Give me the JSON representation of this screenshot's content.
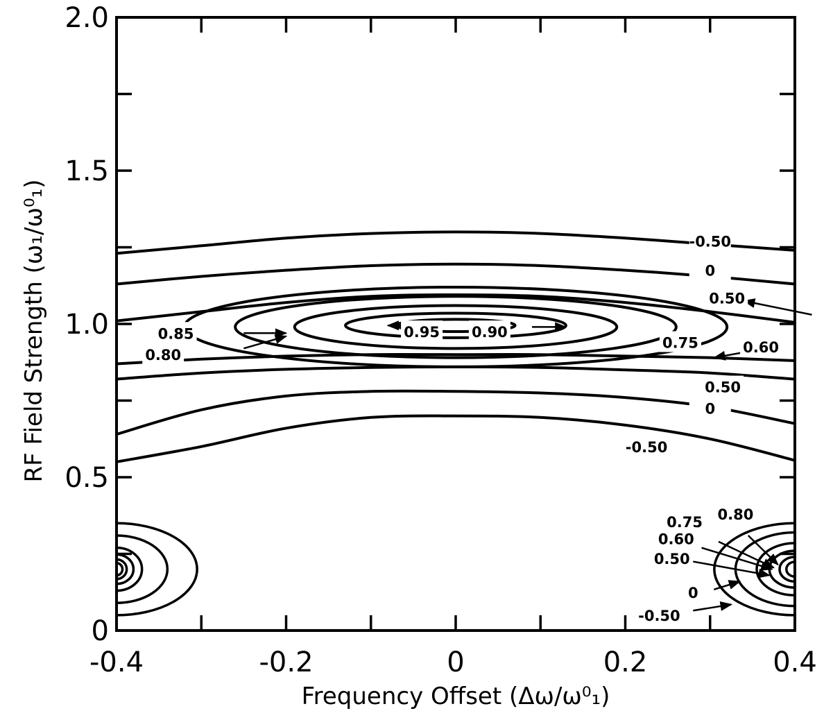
{
  "chart_data": {
    "type": "contour",
    "xlabel": "Frequency Offset (Δω/ω⁰₁)",
    "ylabel": "RF Field Strength (ω₁/ω⁰₁)",
    "xlim": [
      -0.4,
      0.4
    ],
    "ylim": [
      0,
      2.0
    ],
    "x_ticks": [
      -0.4,
      -0.3,
      -0.2,
      -0.1,
      0,
      0.1,
      0.2,
      0.3,
      0.4
    ],
    "x_tick_labels": [
      {
        "value": -0.4,
        "label": "-0.4"
      },
      {
        "value": -0.2,
        "label": "-0.2"
      },
      {
        "value": 0,
        "label": "0"
      },
      {
        "value": 0.2,
        "label": "0.2"
      },
      {
        "value": 0.4,
        "label": "0.4"
      }
    ],
    "y_ticks": [
      0,
      0.25,
      0.5,
      0.75,
      1.0,
      1.25,
      1.5,
      1.75,
      2.0
    ],
    "y_tick_labels": [
      {
        "value": 0,
        "label": "0"
      },
      {
        "value": 0.5,
        "label": "0.5"
      },
      {
        "value": 1.0,
        "label": "1.0"
      },
      {
        "value": 1.5,
        "label": "1.5"
      },
      {
        "value": 2.0,
        "label": "2.0"
      }
    ],
    "grid": false,
    "contour_lines": [
      {
        "level": "-0.50",
        "points": [
          [
            -0.4,
            1.23
          ],
          [
            -0.3,
            1.255
          ],
          [
            -0.2,
            1.28
          ],
          [
            -0.1,
            1.295
          ],
          [
            0,
            1.3
          ],
          [
            0.1,
            1.295
          ],
          [
            0.2,
            1.28
          ],
          [
            0.3,
            1.26
          ],
          [
            0.4,
            1.24
          ]
        ]
      },
      {
        "level": "0",
        "points": [
          [
            -0.4,
            1.13
          ],
          [
            -0.3,
            1.155
          ],
          [
            -0.2,
            1.175
          ],
          [
            -0.1,
            1.19
          ],
          [
            0,
            1.195
          ],
          [
            0.1,
            1.19
          ],
          [
            0.2,
            1.175
          ],
          [
            0.3,
            1.155
          ],
          [
            0.4,
            1.13
          ]
        ]
      },
      {
        "level": "0.50",
        "points": [
          [
            -0.4,
            1.01
          ],
          [
            -0.3,
            1.04
          ],
          [
            -0.2,
            1.07
          ],
          [
            -0.1,
            1.09
          ],
          [
            0,
            1.095
          ],
          [
            0.1,
            1.09
          ],
          [
            0.2,
            1.07
          ],
          [
            0.3,
            1.04
          ],
          [
            0.4,
            1.005
          ]
        ]
      },
      {
        "level": "0.60",
        "points": [
          [
            -0.4,
            0.87
          ],
          [
            -0.3,
            0.885
          ],
          [
            -0.2,
            0.895
          ],
          [
            -0.1,
            0.9
          ],
          [
            0,
            0.9
          ],
          [
            0.1,
            0.9
          ],
          [
            0.2,
            0.895
          ],
          [
            0.3,
            0.89
          ],
          [
            0.4,
            0.88
          ]
        ]
      },
      {
        "level": "0.50",
        "points": [
          [
            -0.4,
            0.82
          ],
          [
            -0.3,
            0.84
          ],
          [
            -0.2,
            0.852
          ],
          [
            -0.1,
            0.858
          ],
          [
            0,
            0.86
          ],
          [
            0.1,
            0.858
          ],
          [
            0.2,
            0.85
          ],
          [
            0.3,
            0.84
          ],
          [
            0.4,
            0.82
          ]
        ]
      },
      {
        "level": "0",
        "points": [
          [
            -0.4,
            0.64
          ],
          [
            -0.3,
            0.72
          ],
          [
            -0.2,
            0.765
          ],
          [
            -0.1,
            0.78
          ],
          [
            0,
            0.78
          ],
          [
            0.1,
            0.775
          ],
          [
            0.2,
            0.76
          ],
          [
            0.3,
            0.73
          ],
          [
            0.4,
            0.675
          ]
        ]
      },
      {
        "level": "-0.50",
        "points": [
          [
            -0.4,
            0.55
          ],
          [
            -0.3,
            0.6
          ],
          [
            -0.2,
            0.66
          ],
          [
            -0.1,
            0.695
          ],
          [
            0,
            0.7
          ],
          [
            0.1,
            0.695
          ],
          [
            0.2,
            0.67
          ],
          [
            0.3,
            0.625
          ],
          [
            0.4,
            0.555
          ]
        ]
      }
    ],
    "contour_ellipses": [
      {
        "level": "0.75",
        "cx": 0,
        "cy": 0.99,
        "rx": 0.32,
        "ry": 0.13
      },
      {
        "level": "0.80",
        "cx": 0,
        "cy": 0.99,
        "rx": 0.26,
        "ry": 0.1
      },
      {
        "level": "0.85",
        "cx": 0,
        "cy": 0.99,
        "rx": 0.19,
        "ry": 0.07
      },
      {
        "level": "0.90",
        "cx": 0,
        "cy": 0.995,
        "rx": 0.13,
        "ry": 0.04
      },
      {
        "level": "0.95",
        "cx": 0,
        "cy": 0.995,
        "rx": 0.07,
        "ry": 0.02
      }
    ],
    "corner_contours": [
      {
        "side": "left",
        "cx": -0.4,
        "cy": 0.2,
        "rx": [
          0.095,
          0.06,
          0.03,
          0.02,
          0.012,
          0.007
        ],
        "ry": [
          0.15,
          0.11,
          0.07,
          0.048,
          0.032,
          0.02
        ]
      },
      {
        "side": "right",
        "cx": 0.4,
        "cy": 0.2,
        "rx": [
          0.095,
          0.07,
          0.045,
          0.03,
          0.018,
          0.01
        ],
        "ry": [
          0.15,
          0.12,
          0.085,
          0.06,
          0.04,
          0.024
        ]
      }
    ],
    "annotations": [
      {
        "text": "-0.50",
        "x": 0.3,
        "y": 1.27
      },
      {
        "text": "0",
        "x": 0.3,
        "y": 1.175
      },
      {
        "text": "0.50",
        "x": 0.32,
        "y": 1.085
      },
      {
        "text": "0.75",
        "x": 0.265,
        "y": 0.94
      },
      {
        "text": "0.60",
        "x": 0.36,
        "y": 0.925
      },
      {
        "text": "0.50",
        "x": 0.315,
        "y": 0.795
      },
      {
        "text": "0",
        "x": 0.3,
        "y": 0.725
      },
      {
        "text": "-0.50",
        "x": 0.225,
        "y": 0.6
      },
      {
        "text": "0.85",
        "x": -0.33,
        "y": 0.97
      },
      {
        "text": "0.80",
        "x": -0.345,
        "y": 0.9
      },
      {
        "text": "0.95",
        "x": -0.04,
        "y": 0.975
      },
      {
        "text": "0.90",
        "x": 0.04,
        "y": 0.975
      },
      {
        "text": "0.75",
        "x": 0.27,
        "y": 0.355
      },
      {
        "text": "0.80",
        "x": 0.33,
        "y": 0.38
      },
      {
        "text": "0.60",
        "x": 0.26,
        "y": 0.3
      },
      {
        "text": "0.50",
        "x": 0.255,
        "y": 0.235
      },
      {
        "text": "0",
        "x": 0.28,
        "y": 0.125
      },
      {
        "text": "-0.50",
        "x": 0.24,
        "y": 0.05
      }
    ],
    "arrows": [
      {
        "from": [
          0.42,
          1.03
        ],
        "to": [
          0.34,
          1.075
        ],
        "target": "0.50"
      },
      {
        "from": [
          0.355,
          0.915
        ],
        "to": [
          0.305,
          0.89
        ],
        "target": "0.60"
      },
      {
        "from": [
          -0.25,
          0.97
        ],
        "to": [
          -0.2,
          0.97
        ],
        "target": "0.85"
      },
      {
        "from": [
          -0.25,
          0.92
        ],
        "to": [
          -0.2,
          0.96
        ],
        "target": "0.80"
      },
      {
        "from": [
          -0.03,
          0.995
        ],
        "to": [
          -0.08,
          0.995
        ],
        "target": "0.95"
      },
      {
        "from": [
          0.09,
          0.99
        ],
        "to": [
          0.13,
          0.99
        ],
        "target": "0.90"
      },
      {
        "from": [
          0.345,
          0.31
        ],
        "to": [
          0.38,
          0.215
        ],
        "target": "0.80"
      },
      {
        "from": [
          0.31,
          0.29
        ],
        "to": [
          0.375,
          0.205
        ],
        "target": "0.75"
      },
      {
        "from": [
          0.29,
          0.27
        ],
        "to": [
          0.373,
          0.2
        ],
        "target": "0.60"
      },
      {
        "from": [
          0.28,
          0.225
        ],
        "to": [
          0.37,
          0.18
        ],
        "target": "0.50"
      },
      {
        "from": [
          0.3,
          0.13
        ],
        "to": [
          0.335,
          0.16
        ],
        "target": "0"
      },
      {
        "from": [
          0.28,
          0.065
        ],
        "to": [
          0.325,
          0.085
        ],
        "target": "-0.50"
      }
    ]
  }
}
